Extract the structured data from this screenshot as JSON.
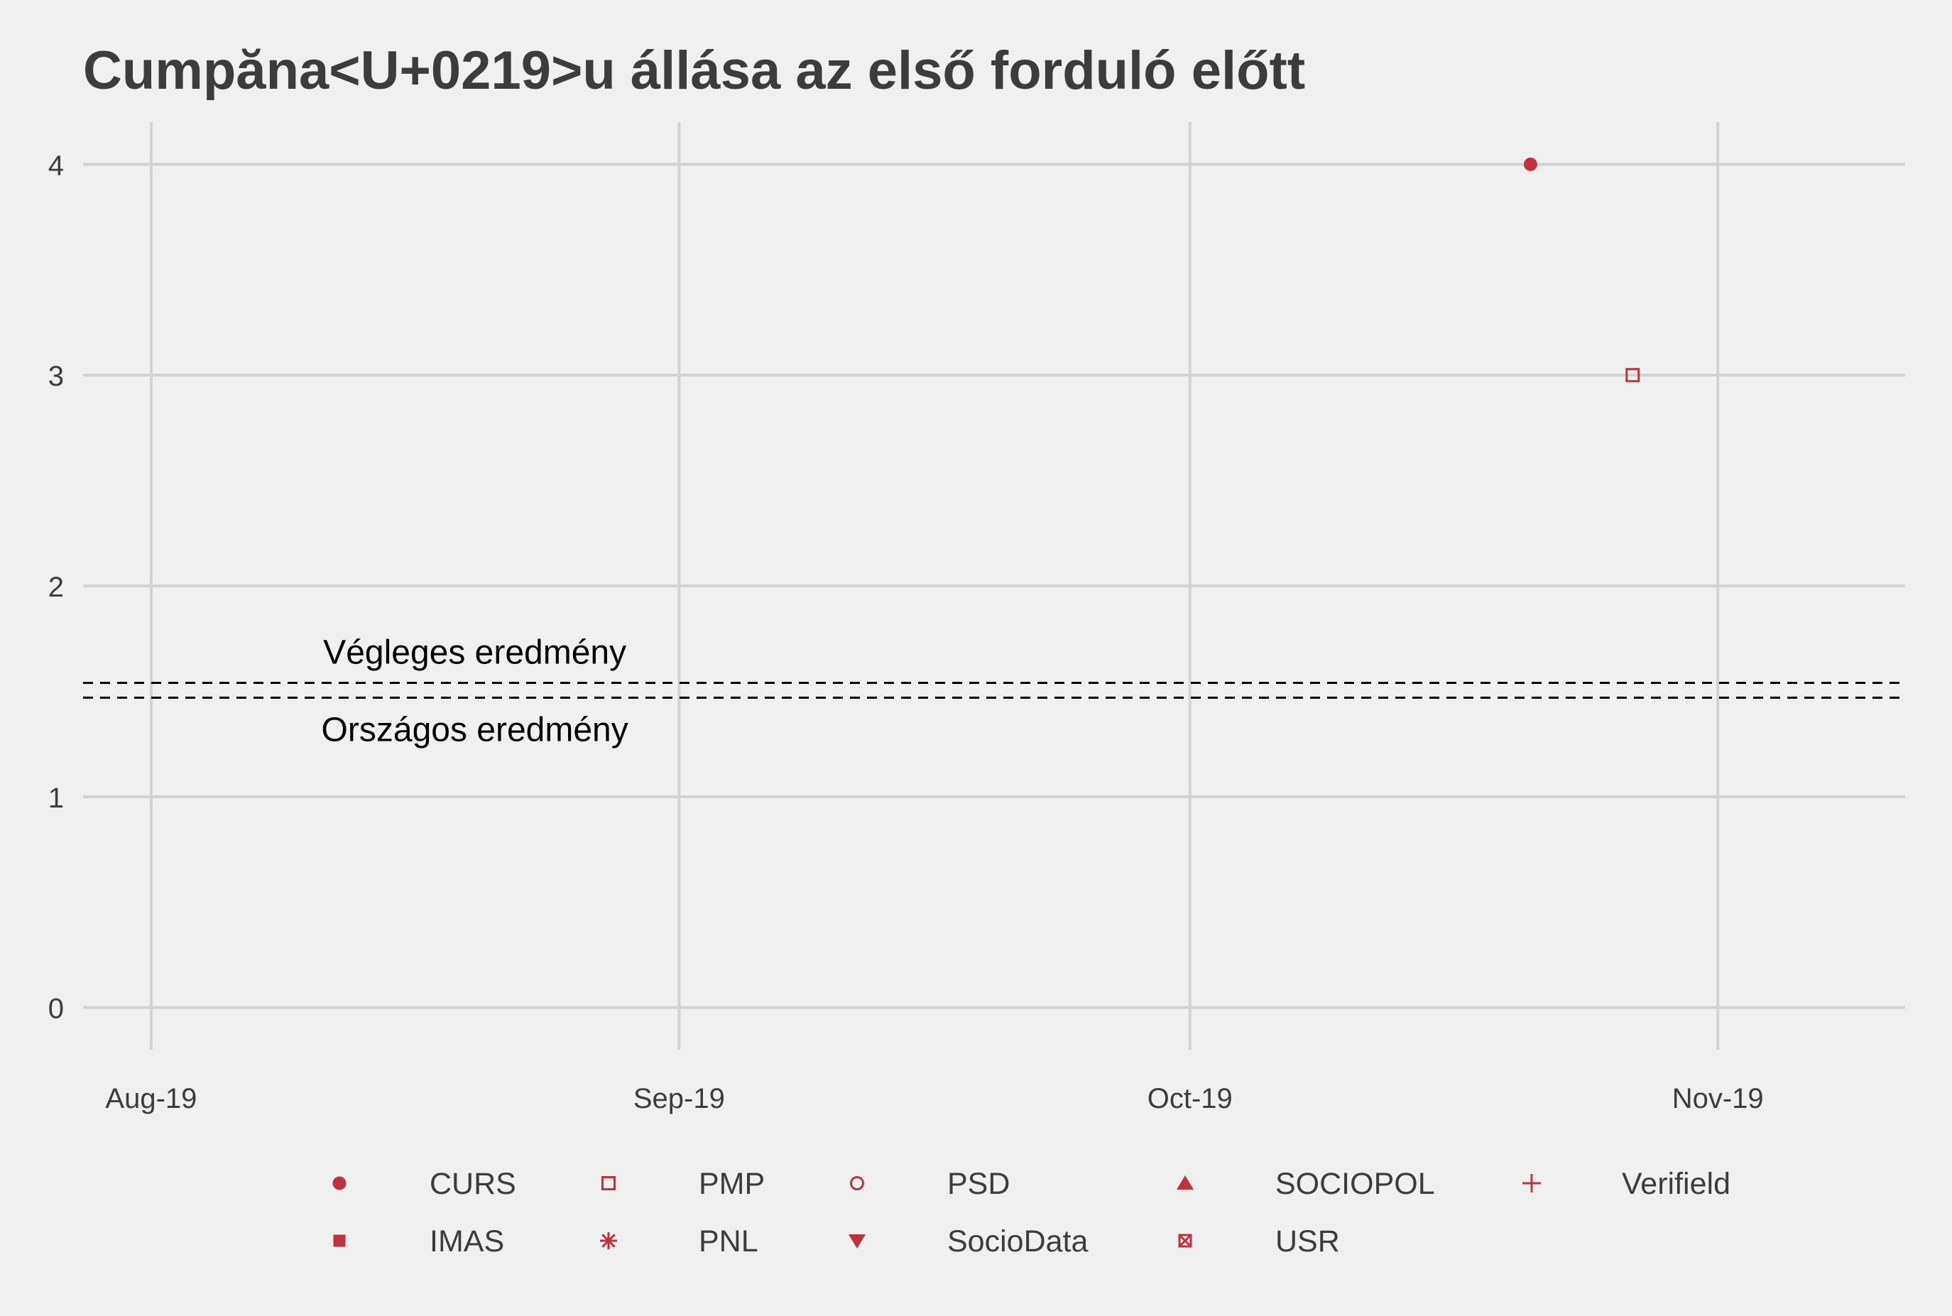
{
  "chart_data": {
    "type": "scatter",
    "title": "Cumpăna<U+0219>u állása az első forduló előtt",
    "xlabel": "",
    "ylabel": "",
    "x_axis": {
      "type": "date",
      "range": [
        "2019-07-28",
        "2019-11-12"
      ],
      "ticks": [
        {
          "date": "2019-08-01",
          "label": "Aug-19"
        },
        {
          "date": "2019-09-01",
          "label": "Sep-19"
        },
        {
          "date": "2019-10-01",
          "label": "Oct-19"
        },
        {
          "date": "2019-11-01",
          "label": "Nov-19"
        }
      ]
    },
    "y_axis": {
      "range": [
        -0.2,
        4.2
      ],
      "ticks": [
        0,
        1,
        2,
        3,
        4
      ]
    },
    "grid": true,
    "legend_position": "bottom",
    "marker_color": "#c0323e",
    "series": [
      {
        "name": "CURS",
        "shape": "filled-circle",
        "points": [
          {
            "x": "2019-10-21",
            "y": 4
          }
        ]
      },
      {
        "name": "PMP",
        "shape": "open-square",
        "points": [
          {
            "x": "2019-10-27",
            "y": 3
          }
        ]
      },
      {
        "name": "PSD",
        "shape": "open-circle",
        "points": []
      },
      {
        "name": "SOCIOPOL",
        "shape": "filled-triangle-up",
        "points": []
      },
      {
        "name": "Verifield",
        "shape": "plus",
        "points": []
      },
      {
        "name": "IMAS",
        "shape": "filled-square",
        "points": []
      },
      {
        "name": "PNL",
        "shape": "asterisk",
        "points": []
      },
      {
        "name": "SocioData",
        "shape": "filled-triangle-down",
        "points": []
      },
      {
        "name": "USR",
        "shape": "boxed-x",
        "points": []
      }
    ],
    "reference_lines": [
      {
        "label": "Végleges eredmény",
        "y": 1.54,
        "style": "dashed",
        "label_side": "above"
      },
      {
        "label": "Országos eredmény",
        "y": 1.47,
        "style": "dashed",
        "label_side": "below"
      }
    ]
  }
}
